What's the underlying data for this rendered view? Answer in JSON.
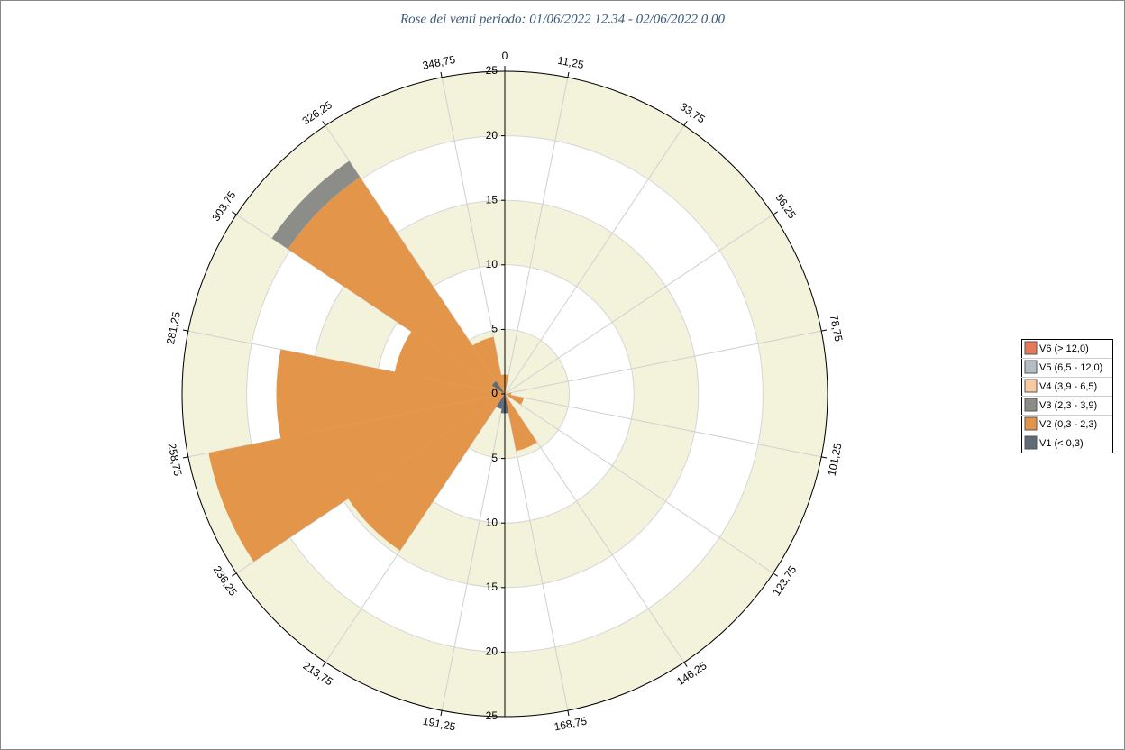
{
  "chart_data": {
    "type": "polar_bar",
    "title": "Rose dei venti periodo: 01/06/2022 12.34 - 02/06/2022 0.00",
    "x": [
      0,
      22.5,
      45,
      67.5,
      90,
      112.5,
      135,
      157.5,
      180,
      202.5,
      225,
      247.5,
      270,
      292.5,
      315,
      337.5
    ],
    "series": [
      {
        "name": "V1 (< 0,3)",
        "color": "#5f6b78",
        "values": [
          0,
          0,
          0,
          0,
          0,
          0,
          0,
          0,
          1.5,
          1.2,
          0,
          0,
          0,
          0,
          1.2,
          0
        ]
      },
      {
        "name": "V2 (0,3 - 2,3)",
        "color": "#e3954a",
        "values": [
          1.5,
          0,
          0,
          0,
          0.5,
          1.5,
          0,
          4.5,
          0,
          0,
          14.6,
          23.4,
          17.7,
          8.7,
          19.0,
          4.5
        ]
      },
      {
        "name": "V3 (2,3 - 3,9)",
        "color": "#8c8c88",
        "values": [
          0,
          0,
          0,
          0,
          0,
          0,
          0,
          0,
          0,
          0,
          0,
          0,
          0,
          0,
          1.5,
          0
        ]
      },
      {
        "name": "V4 (3,9 - 6,5)",
        "color": "#f9c9a0",
        "values": [
          0,
          0,
          0,
          0,
          0,
          0,
          0,
          0,
          0,
          0,
          0,
          0,
          0,
          0,
          0,
          0
        ]
      },
      {
        "name": "V5 (6,5 - 12,0)",
        "color": "#b6bcc3",
        "values": [
          0,
          0,
          0,
          0,
          0,
          0,
          0,
          0,
          0,
          0,
          0,
          0,
          0,
          0,
          0,
          0
        ]
      },
      {
        "name": "V6 (> 12,0)",
        "color": "#e8785a",
        "values": [
          0,
          0,
          0,
          0,
          0,
          0,
          0,
          0,
          0,
          0,
          0,
          0,
          0,
          0,
          0,
          0
        ]
      }
    ],
    "rlim": [
      0,
      25
    ],
    "rticks": [
      0,
      5,
      10,
      15,
      20,
      25
    ],
    "angle_ticks": [
      0,
      {
        "value": 11.25,
        "label": "11,25"
      },
      {
        "value": 33.75,
        "label": "33,75"
      },
      {
        "value": 56.25,
        "label": "56,25"
      },
      {
        "value": 78.75,
        "label": "78,75"
      },
      {
        "value": 101.25,
        "label": "101,25"
      },
      {
        "value": 123.75,
        "label": "123,75"
      },
      {
        "value": 146.25,
        "label": "146,25"
      },
      {
        "value": 168.75,
        "label": "168,75"
      },
      {
        "value": 191.25,
        "label": "191,25"
      },
      {
        "value": 213.75,
        "label": "213,75"
      },
      {
        "value": 236.25,
        "label": "236,25"
      },
      {
        "value": 258.75,
        "label": "258,75"
      },
      {
        "value": 281.25,
        "label": "281,25"
      },
      {
        "value": 303.75,
        "label": "303,75"
      },
      {
        "value": 326.25,
        "label": "326,25"
      },
      {
        "value": 348.75,
        "label": "348,75"
      }
    ],
    "legend": "right"
  }
}
